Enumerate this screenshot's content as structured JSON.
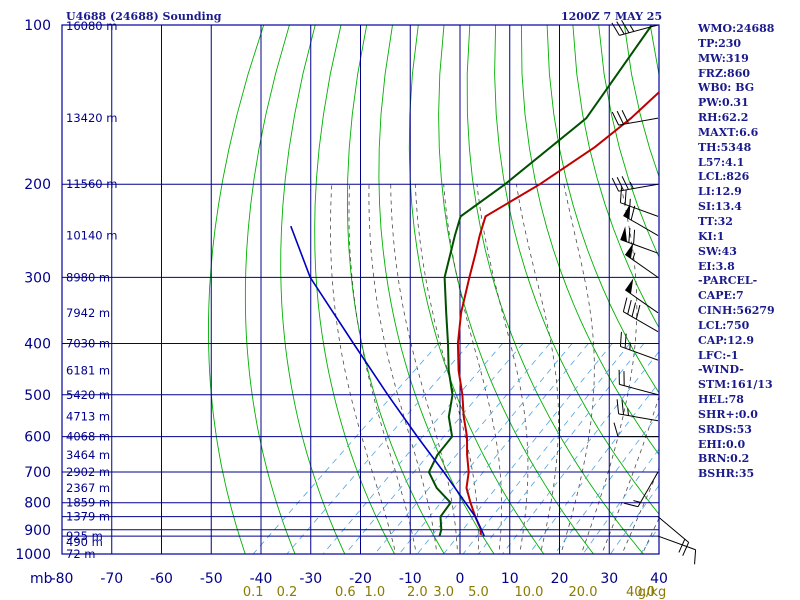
{
  "header": {
    "station_title": "U4688 (24688) Sounding",
    "timestamp": "1200Z  7 MAY 25"
  },
  "colors": {
    "frame": "#0000a0",
    "grid": "#00008b",
    "dry_adiabat": "#00b000",
    "moist_adiabat": "#4a4a4a",
    "mixing_ratio": "#4fa3e0",
    "temperature": "#c00000",
    "dewpoint": "#005000",
    "parcel": "#0000c0",
    "height_label": "#00008b",
    "mixing_label": "#8b7a00",
    "wind": "#000000"
  },
  "index_panel": [
    "WMO:24688",
    "TP:230",
    "MW:319",
    "FRZ:860",
    "WB0: BG",
    "PW:0.31",
    "RH:62.2",
    "MAXT:6.6",
    "TH:5348",
    "L57:4.1",
    "LCL:826",
    "LI:12.9",
    "SI:13.4",
    "TT:32",
    "KI:1",
    "SW:43",
    "EI:3.8",
    "-PARCEL-",
    "CAPE:7",
    "CINH:56279",
    "LCL:750",
    "CAP:12.9",
    "LFC:-1",
    "-WIND-",
    "STM:161/13",
    "HEL:78",
    "SHR+:0.0",
    "SRDS:53",
    "EHI:0.0",
    "BRN:0.2",
    "BSHR:35"
  ],
  "wind_barbs": [
    {
      "pressure": 100,
      "direction": 255,
      "speed_kt": 35
    },
    {
      "pressure": 150,
      "direction": 260,
      "speed_kt": 30
    },
    {
      "pressure": 200,
      "direction": 260,
      "speed_kt": 35
    },
    {
      "pressure": 230,
      "direction": 290,
      "speed_kt": 25
    },
    {
      "pressure": 250,
      "direction": 300,
      "speed_kt": 60
    },
    {
      "pressure": 270,
      "direction": 290,
      "speed_kt": 70
    },
    {
      "pressure": 300,
      "direction": 305,
      "speed_kt": 55
    },
    {
      "pressure": 350,
      "direction": 305,
      "speed_kt": 50
    },
    {
      "pressure": 380,
      "direction": 300,
      "speed_kt": 40
    },
    {
      "pressure": 430,
      "direction": 290,
      "speed_kt": 25
    },
    {
      "pressure": 500,
      "direction": 285,
      "speed_kt": 20
    },
    {
      "pressure": 560,
      "direction": 280,
      "speed_kt": 25
    },
    {
      "pressure": 600,
      "direction": 270,
      "speed_kt": 10
    },
    {
      "pressure": 700,
      "direction": 210,
      "speed_kt": 15
    },
    {
      "pressure": 850,
      "direction": 130,
      "speed_kt": 20
    },
    {
      "pressure": 925,
      "direction": 110,
      "speed_kt": 10
    }
  ],
  "chart_data": {
    "type": "line",
    "title": "U4688 (24688) Sounding",
    "subtitle": "1200Z  7 MAY 25",
    "y_axis": {
      "scale": "log",
      "range": [
        1000,
        100
      ],
      "unit_label": "mb",
      "ticks": [
        100,
        200,
        300,
        400,
        500,
        600,
        700,
        800,
        900,
        1000
      ],
      "tick_labels": [
        "100",
        "200",
        "300",
        "400",
        "500",
        "600",
        "700",
        "800",
        "900",
        "1000"
      ]
    },
    "x_axis": {
      "range": [
        -80,
        40
      ],
      "skew": 1,
      "ticks": [
        -80,
        -70,
        -60,
        -50,
        -40,
        -30,
        -20,
        -10,
        0,
        10,
        20,
        30,
        40
      ],
      "tick_labels": [
        "-80",
        "-70",
        "-60",
        "-50",
        "-40",
        "-30",
        "-20",
        "-10",
        "0",
        "10",
        "20",
        "30",
        "40"
      ]
    },
    "mixing_ratio_labels": [
      {
        "value": 0.1,
        "label": "0.1"
      },
      {
        "value": 0.2,
        "label": "0.2"
      },
      {
        "value": 0.6,
        "label": "0.6"
      },
      {
        "value": 1.0,
        "label": "1.0"
      },
      {
        "value": 2.0,
        "label": "2.0"
      },
      {
        "value": 3.0,
        "label": "3.0"
      },
      {
        "value": 5.0,
        "label": "5.0"
      },
      {
        "value": 10.0,
        "label": "10.0"
      },
      {
        "value": 20.0,
        "label": "20.0"
      },
      {
        "value": 40.0,
        "label": "40.0"
      }
    ],
    "mixing_ratio_unit": "g/kg",
    "height_labels": [
      {
        "pressure": 100,
        "label": "16080 m"
      },
      {
        "pressure": 150,
        "label": "13420 m"
      },
      {
        "pressure": 200,
        "label": "11560 m"
      },
      {
        "pressure": 250,
        "label": "10140 m"
      },
      {
        "pressure": 300,
        "label": "8980 m"
      },
      {
        "pressure": 350,
        "label": "7942 m"
      },
      {
        "pressure": 400,
        "label": "7030 m"
      },
      {
        "pressure": 450,
        "label": "6181 m"
      },
      {
        "pressure": 500,
        "label": "5420 m"
      },
      {
        "pressure": 550,
        "label": "4713 m"
      },
      {
        "pressure": 600,
        "label": "4068 m"
      },
      {
        "pressure": 650,
        "label": "3464 m"
      },
      {
        "pressure": 700,
        "label": "2902 m"
      },
      {
        "pressure": 750,
        "label": "2367 m"
      },
      {
        "pressure": 800,
        "label": "1859 m"
      },
      {
        "pressure": 850,
        "label": "1379 m"
      },
      {
        "pressure": 925,
        "label": "925 m"
      },
      {
        "pressure": 950,
        "label": "490 m"
      },
      {
        "pressure": 1000,
        "label": "72 m"
      }
    ],
    "series": [
      {
        "name": "temperature",
        "points": [
          {
            "p": 920,
            "t": 0
          },
          {
            "p": 900,
            "t": -1
          },
          {
            "p": 850,
            "t": -5
          },
          {
            "p": 800,
            "t": -9
          },
          {
            "p": 750,
            "t": -13
          },
          {
            "p": 700,
            "t": -16
          },
          {
            "p": 650,
            "t": -20
          },
          {
            "p": 600,
            "t": -24
          },
          {
            "p": 550,
            "t": -29
          },
          {
            "p": 500,
            "t": -34
          },
          {
            "p": 450,
            "t": -40
          },
          {
            "p": 400,
            "t": -46
          },
          {
            "p": 350,
            "t": -52
          },
          {
            "p": 300,
            "t": -58
          },
          {
            "p": 270,
            "t": -62
          },
          {
            "p": 250,
            "t": -65
          },
          {
            "p": 230,
            "t": -68
          },
          {
            "p": 200,
            "t": -64
          },
          {
            "p": 170,
            "t": -61
          },
          {
            "p": 150,
            "t": -60
          },
          {
            "p": 130,
            "t": -60
          },
          {
            "p": 100,
            "t": -60
          }
        ]
      },
      {
        "name": "dewpoint",
        "points": [
          {
            "p": 925,
            "t": -8
          },
          {
            "p": 900,
            "t": -9
          },
          {
            "p": 850,
            "t": -12
          },
          {
            "p": 800,
            "t": -13
          },
          {
            "p": 750,
            "t": -19
          },
          {
            "p": 700,
            "t": -24
          },
          {
            "p": 650,
            "t": -26
          },
          {
            "p": 600,
            "t": -27
          },
          {
            "p": 550,
            "t": -32
          },
          {
            "p": 500,
            "t": -36
          },
          {
            "p": 450,
            "t": -42
          },
          {
            "p": 400,
            "t": -48
          },
          {
            "p": 350,
            "t": -55
          },
          {
            "p": 300,
            "t": -63
          },
          {
            "p": 250,
            "t": -70
          },
          {
            "p": 230,
            "t": -73
          },
          {
            "p": 200,
            "t": -71
          },
          {
            "p": 150,
            "t": -69
          },
          {
            "p": 100,
            "t": -76
          }
        ]
      },
      {
        "name": "parcel",
        "points": [
          {
            "p": 925,
            "t": 1
          },
          {
            "p": 850,
            "t": -5
          },
          {
            "p": 700,
            "t": -21
          },
          {
            "p": 600,
            "t": -34
          },
          {
            "p": 500,
            "t": -49
          },
          {
            "p": 400,
            "t": -67
          },
          {
            "p": 300,
            "t": -90
          },
          {
            "p": 240,
            "t": -105
          }
        ]
      }
    ],
    "grid": true
  }
}
